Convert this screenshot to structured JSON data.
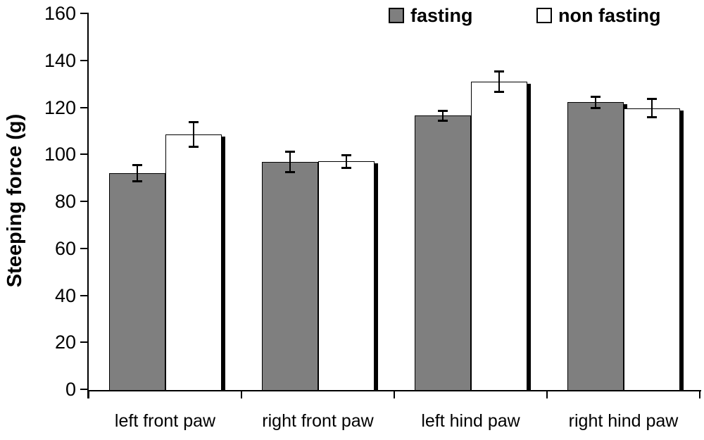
{
  "chart_data": {
    "type": "bar",
    "title": "",
    "xlabel": "",
    "ylabel": "Steeping force (g)",
    "ylim": [
      0,
      160
    ],
    "ytick_step": 20,
    "grid": false,
    "legend_position": "top-right",
    "error_bars": true,
    "bar_outline_color": "#000000",
    "shadow_color": "#000000",
    "background_color": "#ffffff",
    "categories": [
      "left front paw",
      "right front paw",
      "left hind paw",
      "right hind paw"
    ],
    "series": [
      {
        "name": "fasting",
        "fill": "#7f7f7f",
        "values": [
          92,
          96.8,
          116.5,
          122.2
        ],
        "errors": [
          3.5,
          4.6,
          2.2,
          2.5
        ]
      },
      {
        "name": "non fasting",
        "fill": "#ffffff",
        "values": [
          108.5,
          97,
          130.8,
          119.7
        ],
        "errors": [
          5.3,
          2.9,
          4.5,
          4.1
        ]
      }
    ]
  }
}
